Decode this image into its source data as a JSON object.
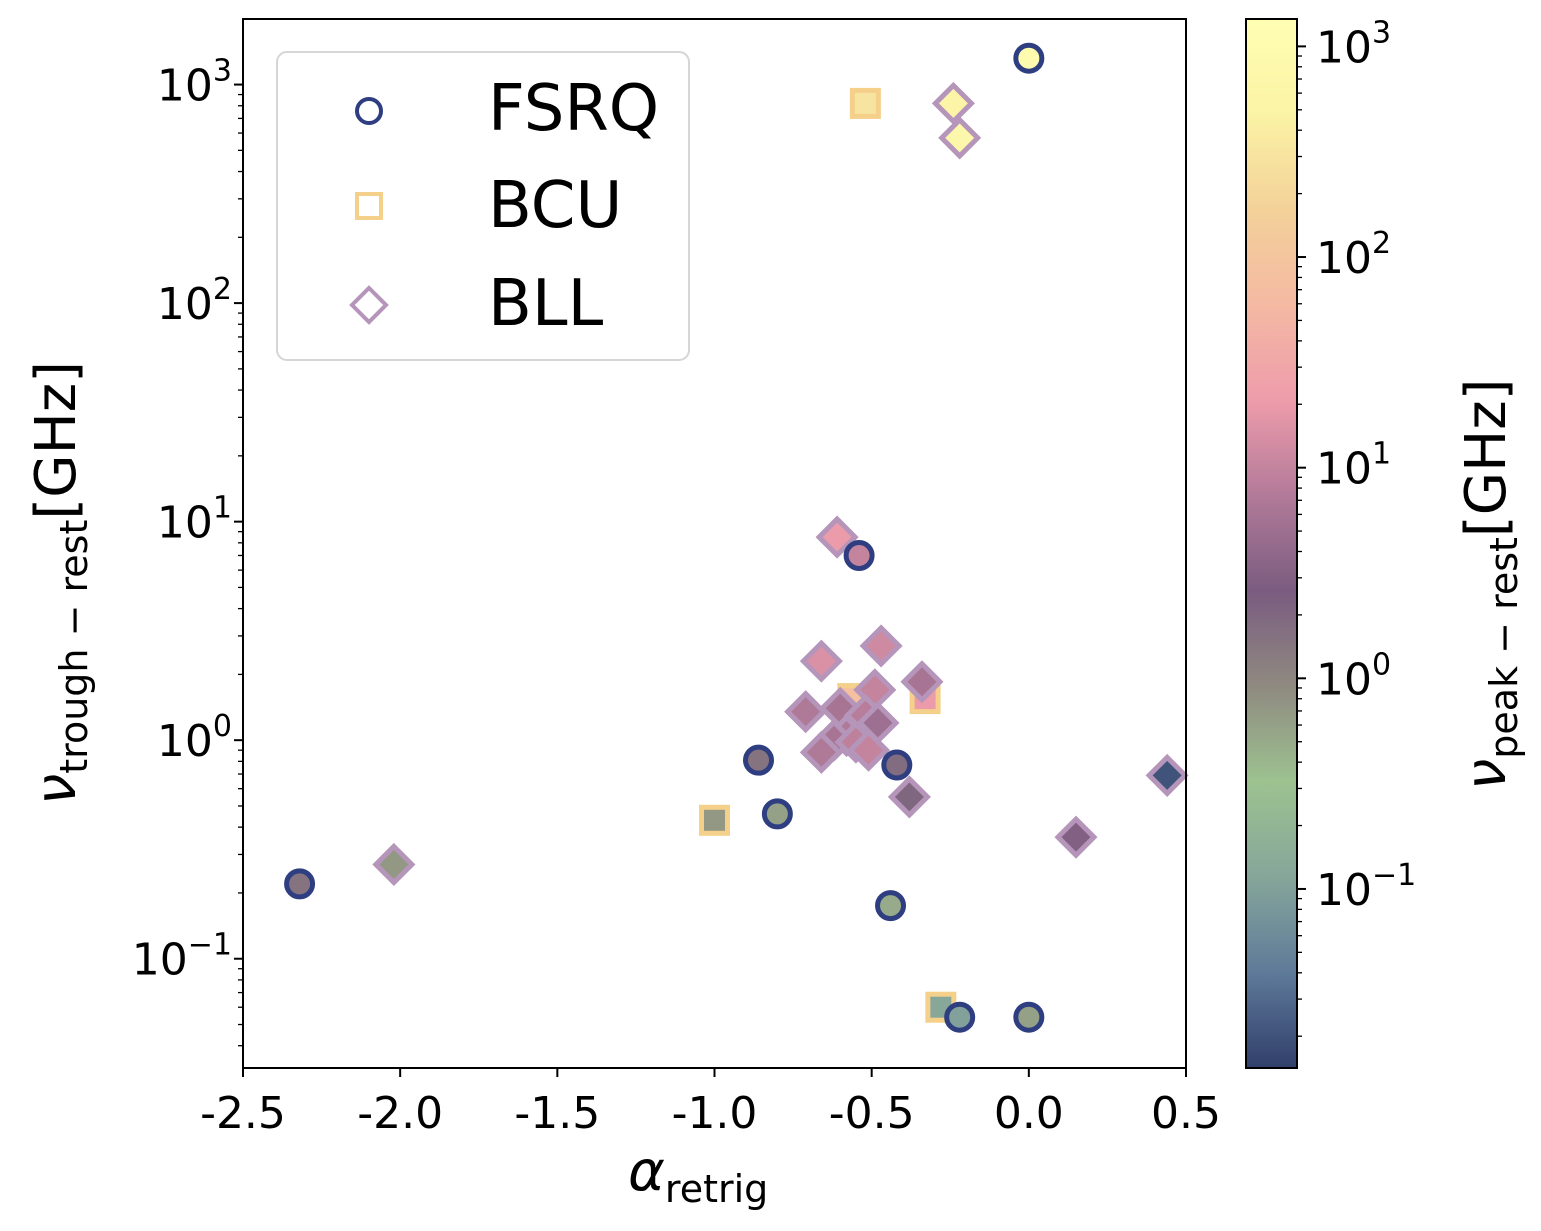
{
  "chart_data": {
    "type": "scatter",
    "xlabel": {
      "symbol": "α",
      "subscript": "retrig"
    },
    "ylabel": {
      "symbol": "ν",
      "subscript": "trough − rest",
      "unit": "[GHz]"
    },
    "colorbar_label": {
      "symbol": "ν",
      "subscript": "peak − rest",
      "unit": "[GHz]"
    },
    "xlim": [
      -2.5,
      0.5
    ],
    "ylim_log10": [
      -1.5,
      3.3
    ],
    "y_scale": "log",
    "x_ticks": [
      "-2.5",
      "-2.0",
      "-1.5",
      "-1.0",
      "-0.5",
      "0.0",
      "0.5"
    ],
    "y_ticks": [
      {
        "base": "10",
        "exp": "−1"
      },
      {
        "base": "10",
        "exp": "0"
      },
      {
        "base": "10",
        "exp": "1"
      },
      {
        "base": "10",
        "exp": "2"
      },
      {
        "base": "10",
        "exp": "3"
      }
    ],
    "colorbar": {
      "scale": "log",
      "range_log10": [
        -1.85,
        3.13
      ],
      "ticks": [
        {
          "base": "10",
          "exp": "−1"
        },
        {
          "base": "10",
          "exp": "0"
        },
        {
          "base": "10",
          "exp": "1"
        },
        {
          "base": "10",
          "exp": "2"
        },
        {
          "base": "10",
          "exp": "3"
        }
      ],
      "colormap_stops": [
        "#313f6b",
        "#5e7a99",
        "#86a69a",
        "#9dc290",
        "#8f8a80",
        "#7a5c80",
        "#b27a99",
        "#ee9cab",
        "#f4b9a3",
        "#f3d199",
        "#fbf3a5",
        "#fffeb2"
      ]
    },
    "legend": {
      "position": "upper-left",
      "entries": [
        {
          "label": "FSRQ",
          "marker": "circle",
          "edge_color": "#2e3e80"
        },
        {
          "label": "BCU",
          "marker": "square",
          "edge_color": "#f4d08a"
        },
        {
          "label": "BLL",
          "marker": "diamond",
          "edge_color": "#b595ba"
        }
      ]
    },
    "series": [
      {
        "name": "FSRQ",
        "marker": "circle",
        "points": [
          {
            "x": 0.0,
            "y": 1320,
            "c": 1000
          },
          {
            "x": -0.54,
            "y": 7.0,
            "c": 10
          },
          {
            "x": -0.86,
            "y": 0.81,
            "c": 1.5
          },
          {
            "x": -0.42,
            "y": 0.77,
            "c": 1.8
          },
          {
            "x": -0.8,
            "y": 0.46,
            "c": 0.6
          },
          {
            "x": -2.32,
            "y": 0.22,
            "c": 1.5
          },
          {
            "x": -0.44,
            "y": 0.175,
            "c": 0.5
          },
          {
            "x": -0.22,
            "y": 0.054,
            "c": 0.1
          },
          {
            "x": 0.0,
            "y": 0.054,
            "c": 0.6
          }
        ]
      },
      {
        "name": "BCU",
        "marker": "square",
        "points": [
          {
            "x": -0.52,
            "y": 820,
            "c": 300
          },
          {
            "x": -0.56,
            "y": 1.55,
            "c": 80
          },
          {
            "x": -0.33,
            "y": 1.55,
            "c": 20
          },
          {
            "x": -1.0,
            "y": 0.43,
            "c": 0.7
          },
          {
            "x": -0.28,
            "y": 0.06,
            "c": 0.12
          }
        ]
      },
      {
        "name": "BLL",
        "marker": "diamond",
        "points": [
          {
            "x": -0.24,
            "y": 820,
            "c": 600
          },
          {
            "x": -0.22,
            "y": 570,
            "c": 700
          },
          {
            "x": -0.61,
            "y": 8.5,
            "c": 20
          },
          {
            "x": -0.66,
            "y": 2.3,
            "c": 15
          },
          {
            "x": -0.47,
            "y": 2.7,
            "c": 12
          },
          {
            "x": -0.34,
            "y": 1.85,
            "c": 6
          },
          {
            "x": -0.49,
            "y": 1.7,
            "c": 10
          },
          {
            "x": -0.71,
            "y": 1.35,
            "c": 7
          },
          {
            "x": -0.6,
            "y": 1.4,
            "c": 6
          },
          {
            "x": -0.52,
            "y": 1.3,
            "c": 8
          },
          {
            "x": -0.48,
            "y": 1.2,
            "c": 5
          },
          {
            "x": -0.58,
            "y": 1.05,
            "c": 7
          },
          {
            "x": -0.62,
            "y": 1.0,
            "c": 6
          },
          {
            "x": -0.55,
            "y": 0.98,
            "c": 9
          },
          {
            "x": -0.51,
            "y": 0.9,
            "c": 10
          },
          {
            "x": -0.66,
            "y": 0.88,
            "c": 7
          },
          {
            "x": -0.38,
            "y": 0.55,
            "c": 2
          },
          {
            "x": -2.02,
            "y": 0.27,
            "c": 0.7
          },
          {
            "x": 0.15,
            "y": 0.36,
            "c": 3
          },
          {
            "x": 0.44,
            "y": 0.69,
            "c": 0.02
          }
        ]
      }
    ]
  }
}
